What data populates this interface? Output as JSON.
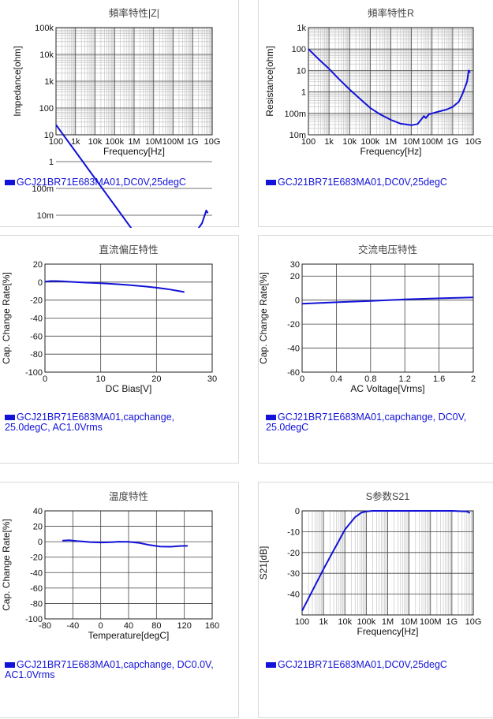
{
  "chart_data": [
    {
      "id": "impedance",
      "type": "line",
      "title": "頻率特性|Z|",
      "xlabel": "Frequency[Hz]",
      "ylabel": "Impedance[ohm]",
      "xscale": "log",
      "yscale": "log",
      "xlim": [
        100,
        10000000000
      ],
      "ylim": [
        10,
        100000
      ],
      "xticks": [
        "100",
        "1k",
        "10k",
        "100k",
        "1M",
        "10M",
        "100M",
        "1G",
        "10G"
      ],
      "yticks": [
        "10m",
        "100m",
        "1",
        "10",
        "100",
        "1k",
        "10k",
        "100k"
      ],
      "grid": true,
      "legend": "GCJ21BR71E683MA01,DC0V,25degC",
      "series": [
        {
          "name": "GCJ21BR71E683MA01,DC0V,25degC",
          "color": "#1212d8",
          "x": [
            100,
            1000,
            10000,
            100000,
            1000000,
            10000000,
            20000000,
            25000000,
            30000000,
            50000000,
            100000000,
            300000000,
            1000000000,
            3000000000,
            5000000000,
            6000000000
          ],
          "y": [
            23.4,
            2.34,
            0.234,
            0.0234,
            0.00234,
            0.0002,
            8e-05,
            4e-05,
            5e-05,
            9e-05,
            0.00018,
            0.00048,
            0.0016,
            0.005,
            0.015,
            0.012
          ]
        }
      ]
    },
    {
      "id": "resistance",
      "type": "line",
      "title": "頻率特性R",
      "xlabel": "Frequency[Hz]",
      "ylabel": "Resistance[ohm]",
      "xscale": "log",
      "yscale": "log",
      "xlim": [
        100,
        10000000000
      ],
      "ylim": [
        0.01,
        1000
      ],
      "xticks": [
        "100",
        "1k",
        "10k",
        "100k",
        "1M",
        "10M",
        "100M",
        "1G",
        "10G"
      ],
      "yticks": [
        "10m",
        "100m",
        "1",
        "10",
        "100",
        "1k"
      ],
      "grid": true,
      "legend": "GCJ21BR71E683MA01,DC0V,25degC",
      "series": [
        {
          "name": "GCJ21BR71E683MA01,DC0V,25degC",
          "color": "#1212d8",
          "x": [
            100,
            300,
            1000,
            3000,
            10000,
            30000,
            100000,
            300000,
            1000000,
            3000000,
            10000000,
            20000000,
            40000000,
            50000000,
            70000000,
            100000000,
            200000000,
            500000000,
            1000000000,
            2000000000,
            3000000000,
            5000000000,
            6000000000,
            7000000000
          ],
          "y": [
            100,
            35,
            12,
            4,
            1.3,
            0.5,
            0.18,
            0.09,
            0.05,
            0.033,
            0.028,
            0.032,
            0.075,
            0.06,
            0.09,
            0.1,
            0.12,
            0.15,
            0.2,
            0.35,
            0.8,
            3,
            10,
            8
          ]
        }
      ]
    },
    {
      "id": "dcbias",
      "type": "line",
      "title": "直流偏圧特性",
      "xlabel": "DC Bias[V]",
      "ylabel": "Cap. Change Rate[%]",
      "xlim": [
        0,
        30
      ],
      "ylim": [
        -100,
        20
      ],
      "xticks": [
        "0",
        "10",
        "20",
        "30"
      ],
      "yticks": [
        "20",
        "0",
        "-20",
        "-40",
        "-60",
        "-80",
        "-100"
      ],
      "grid": true,
      "legend": "GCJ21BR71E683MA01,capchange, 25.0degC, AC1.0Vrms",
      "series": [
        {
          "name": "GCJ21BR71E683MA01,capchange, 25.0degC, AC1.0Vrms",
          "color": "#1212d8",
          "x": [
            0,
            1,
            2,
            3,
            5,
            7,
            10,
            13,
            15,
            18,
            20,
            22,
            25
          ],
          "y": [
            0.5,
            1.2,
            1.2,
            1.0,
            0.2,
            -0.5,
            -1.3,
            -2.3,
            -3.2,
            -4.9,
            -6.2,
            -7.8,
            -11.0
          ]
        }
      ]
    },
    {
      "id": "acvoltage",
      "type": "line",
      "title": "交流电压特性",
      "xlabel": "AC Voltage[Vrms]",
      "ylabel": "Cap. Change Rate[%]",
      "xlim": [
        0,
        2
      ],
      "ylim": [
        -60,
        30
      ],
      "xticks": [
        "0",
        "0.4",
        "0.8",
        "1.2",
        "1.6",
        "2"
      ],
      "yticks": [
        "30",
        "20",
        "0",
        "-20",
        "-40",
        "-60"
      ],
      "grid": true,
      "legend": "GCJ21BR71E683MA01,capchange, DC0V, 25.0degC",
      "series": [
        {
          "name": "GCJ21BR71E683MA01,capchange, DC0V, 25.0degC",
          "color": "#1212d8",
          "x": [
            0,
            0.4,
            0.8,
            1.0,
            1.2,
            1.6,
            2.0
          ],
          "y": [
            -3.0,
            -1.8,
            -0.7,
            0,
            0.6,
            1.5,
            2.2
          ]
        }
      ]
    },
    {
      "id": "temperature",
      "type": "line",
      "title": "温度特性",
      "xlabel": "Temperature[degC]",
      "ylabel": "Cap. Change Rate[%]",
      "xlim": [
        -80,
        160
      ],
      "ylim": [
        -100,
        40
      ],
      "xticks": [
        "-80",
        "-40",
        "0",
        "40",
        "80",
        "120",
        "160"
      ],
      "yticks": [
        "40",
        "20",
        "0",
        "-20",
        "-40",
        "-60",
        "-80",
        "-100"
      ],
      "grid": true,
      "legend": "GCJ21BR71E683MA01,capchange, DC0.0V, AC1.0Vrms",
      "series": [
        {
          "name": "GCJ21BR71E683MA01,capchange, DC0.0V, AC1.0Vrms",
          "color": "#1212d8",
          "x": [
            -55,
            -45,
            -35,
            -25,
            -15,
            0,
            15,
            25,
            40,
            55,
            70,
            85,
            100,
            115,
            125
          ],
          "y": [
            1.5,
            2.0,
            1.0,
            0.2,
            -0.5,
            -1.0,
            -0.6,
            0,
            -0.2,
            -1.5,
            -4.2,
            -6.3,
            -6.5,
            -5.5,
            -5.4
          ]
        }
      ]
    },
    {
      "id": "s21",
      "type": "line",
      "title": "S参数S21",
      "xlabel": "Frequency[Hz]",
      "ylabel": "S21[dB]",
      "xscale": "log",
      "xlim": [
        100,
        10000000000
      ],
      "ylim": [
        -50,
        0
      ],
      "xticks": [
        "100",
        "1k",
        "10k",
        "100k",
        "1M",
        "10M",
        "100M",
        "1G",
        "10G"
      ],
      "yticks": [
        "0",
        "-10",
        "-20",
        "-30",
        "-40"
      ],
      "grid": true,
      "legend": "GCJ21BR71E683MA01,DC0V,25degC",
      "series": [
        {
          "name": "GCJ21BR71E683MA01,DC0V,25degC",
          "color": "#1212d8",
          "x": [
            100,
            1000,
            10000,
            30000,
            60000,
            100000,
            200000,
            1000000,
            10000000,
            100000000,
            1000000000,
            5000000000,
            7000000000
          ],
          "y": [
            -48,
            -28,
            -9,
            -3,
            -0.8,
            -0.3,
            0,
            0,
            0,
            0,
            0,
            -0.3,
            -1
          ]
        }
      ]
    }
  ]
}
